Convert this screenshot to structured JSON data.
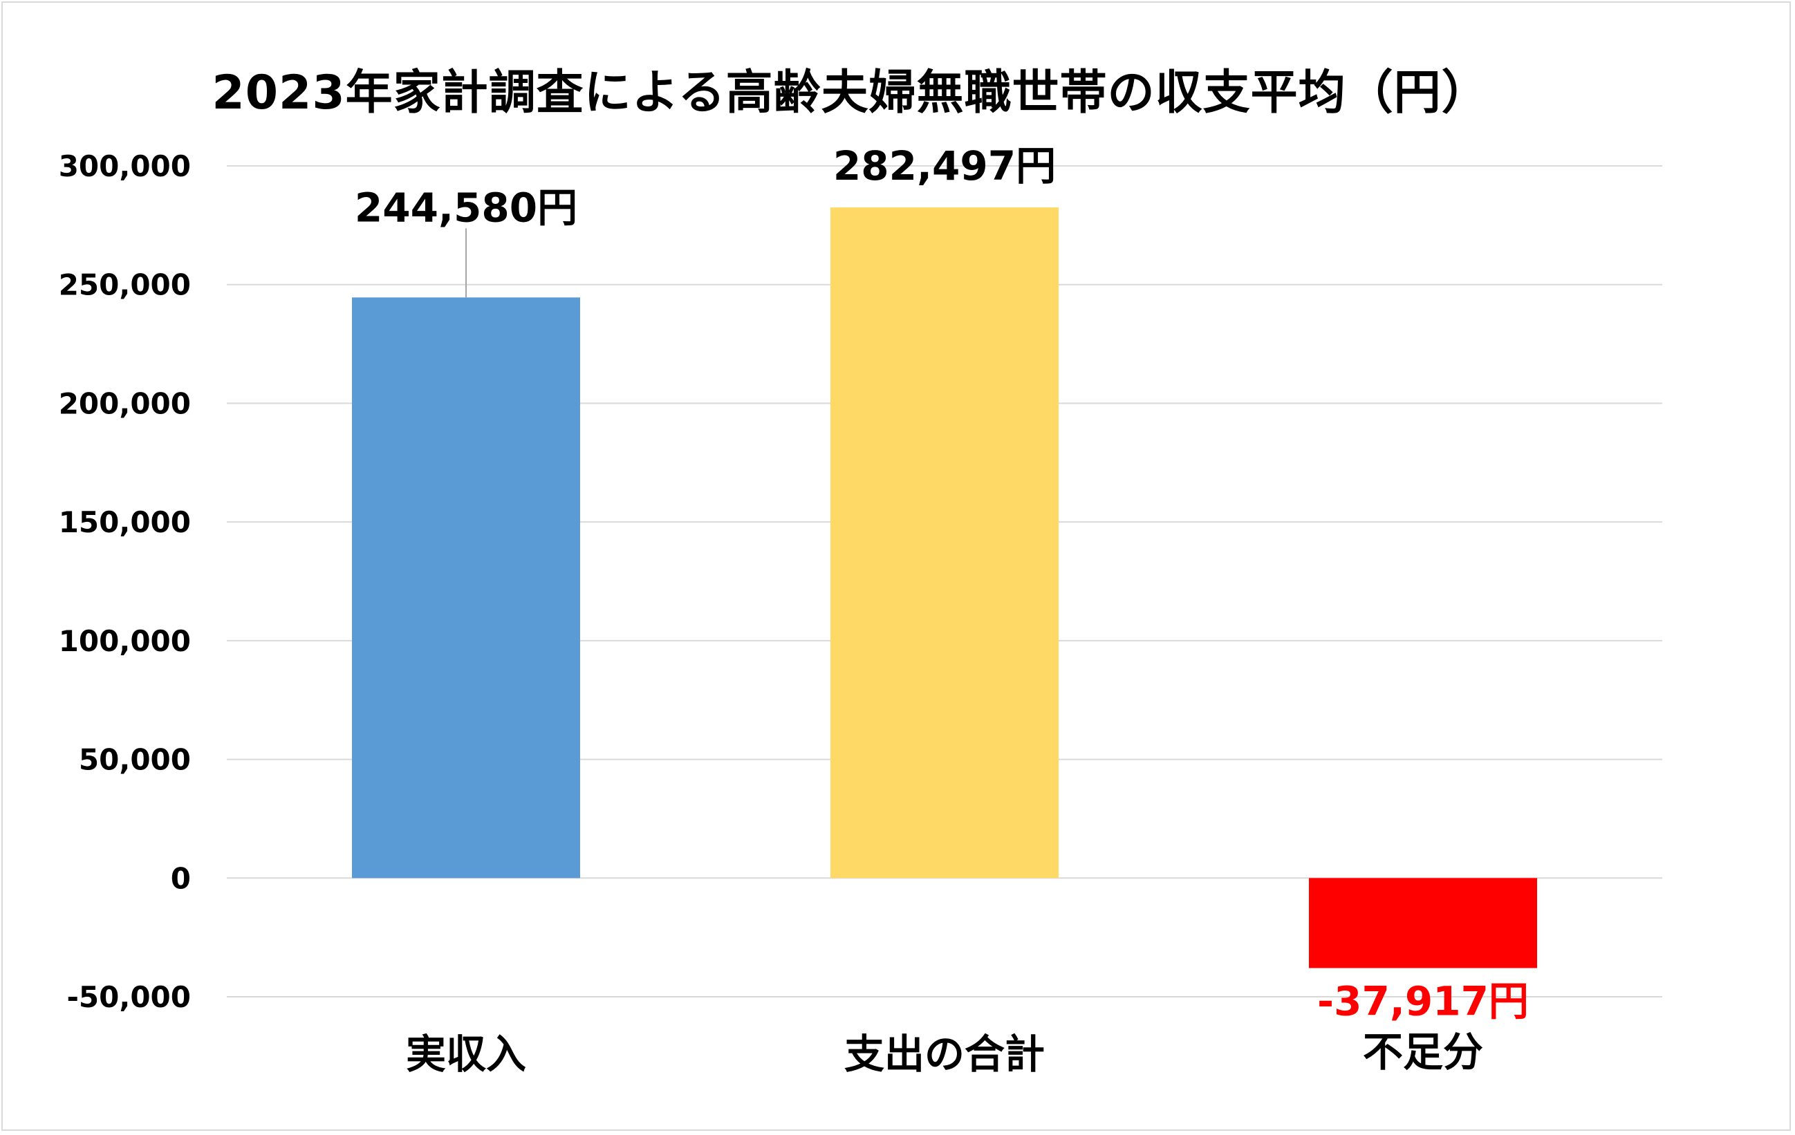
{
  "chart_data": {
    "type": "bar",
    "title": "2023年家計調査による高齢夫婦無職世帯の収支平均（円）",
    "categories": [
      "実収入",
      "支出の合計",
      "不足分"
    ],
    "category_colors": [
      "#000000",
      "#000000",
      "#ff0000"
    ],
    "values": [
      244580,
      282497,
      -37917
    ],
    "bar_colors": [
      "#5b9bd5",
      "#ffd966",
      "#ff0000"
    ],
    "data_labels": [
      "244,580円",
      "282,497円",
      "-37,917円"
    ],
    "label_colors": [
      "#000000",
      "#000000",
      "#ff0000"
    ],
    "y_ticks": [
      "300,000",
      "250,000",
      "200,000",
      "150,000",
      "100,000",
      "50,000",
      "0",
      "-50,000"
    ],
    "y_tick_values": [
      300000,
      250000,
      200000,
      150000,
      100000,
      50000,
      0,
      -50000
    ],
    "ylim": [
      -50000,
      300000
    ],
    "grid": true,
    "gridline_color": "#d9d9d9"
  }
}
